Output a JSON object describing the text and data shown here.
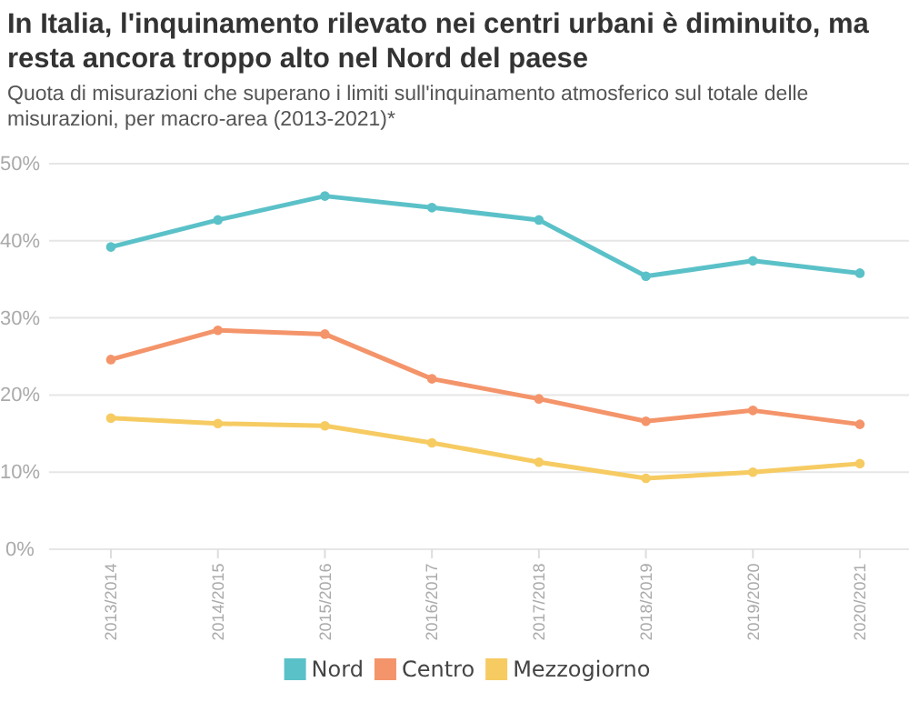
{
  "chart_data": {
    "type": "line",
    "title": "In Italia, l'inquinamento rilevato nei centri urbani è diminuito, ma resta ancora troppo alto nel Nord del paese",
    "subtitle": "Quota di misurazioni che superano i limiti sull'inquinamento atmosferico sul totale delle misurazioni, per macro-area (2013-2021)*",
    "categories": [
      "2013/2014",
      "2014/2015",
      "2015/2016",
      "2016/2017",
      "2017/2018",
      "2018/2019",
      "2019/2020",
      "2020/2021"
    ],
    "series": [
      {
        "name": "Nord",
        "color": "#5bc1c8",
        "values": [
          39.2,
          42.7,
          45.8,
          44.3,
          42.7,
          35.4,
          37.4,
          35.8
        ]
      },
      {
        "name": "Centro",
        "color": "#f4946a",
        "values": [
          24.6,
          28.4,
          27.9,
          22.1,
          19.5,
          16.6,
          18.0,
          16.2
        ]
      },
      {
        "name": "Mezzogiorno",
        "color": "#f6cb62",
        "values": [
          17.0,
          16.3,
          16.0,
          13.8,
          11.3,
          9.2,
          10.0,
          11.1
        ]
      }
    ],
    "ylim": [
      0,
      50
    ],
    "yticks": [
      {
        "value": 0,
        "label": "0%"
      },
      {
        "value": 10,
        "label": "10%"
      },
      {
        "value": 20,
        "label": "20%"
      },
      {
        "value": 30,
        "label": "30%"
      },
      {
        "value": 40,
        "label": "40%"
      },
      {
        "value": 50,
        "label": "50%"
      }
    ],
    "grid": "y",
    "legend": "bottom",
    "marker": "circle",
    "line_style": "solid"
  }
}
